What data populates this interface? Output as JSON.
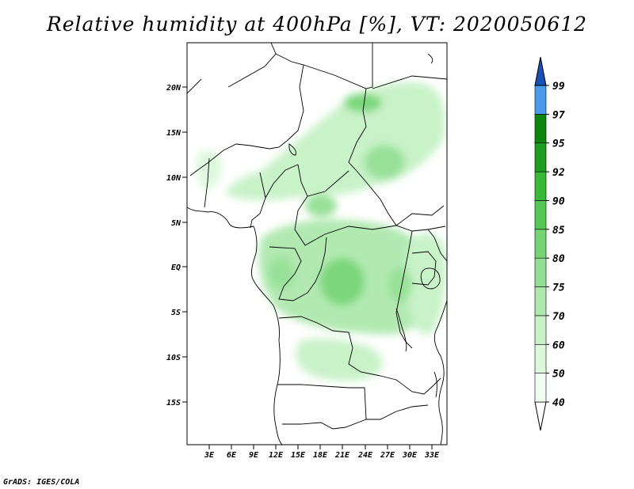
{
  "title": "Relative humidity at 400hPa [%], VT: 2020050612",
  "credit": "GrADS: IGES/COLA",
  "map": {
    "lon_range": [
      0,
      35
    ],
    "lat_range": [
      -20,
      25
    ],
    "lat_ticks": [
      "20N",
      "15N",
      "10N",
      "5N",
      "EQ",
      "5S",
      "10S",
      "15S"
    ],
    "lon_ticks": [
      "3E",
      "6E",
      "9E",
      "12E",
      "15E",
      "18E",
      "21E",
      "24E",
      "27E",
      "30E",
      "33E"
    ]
  },
  "colorbar": {
    "levels": [
      "40",
      "50",
      "60",
      "70",
      "75",
      "80",
      "85",
      "90",
      "92",
      "95",
      "97",
      "99"
    ],
    "colors": [
      "#f0fdf0",
      "#dcf8dc",
      "#c6f2c6",
      "#ade8ad",
      "#93df93",
      "#74d474",
      "#55c855",
      "#38ba38",
      "#1e9e1e",
      "#0c860c",
      "#4a9ce8",
      "#2570d6",
      "#1a4fb4"
    ],
    "under_color": "#ffffff"
  },
  "colors": {
    "border": "#000000",
    "background": "#ffffff"
  }
}
